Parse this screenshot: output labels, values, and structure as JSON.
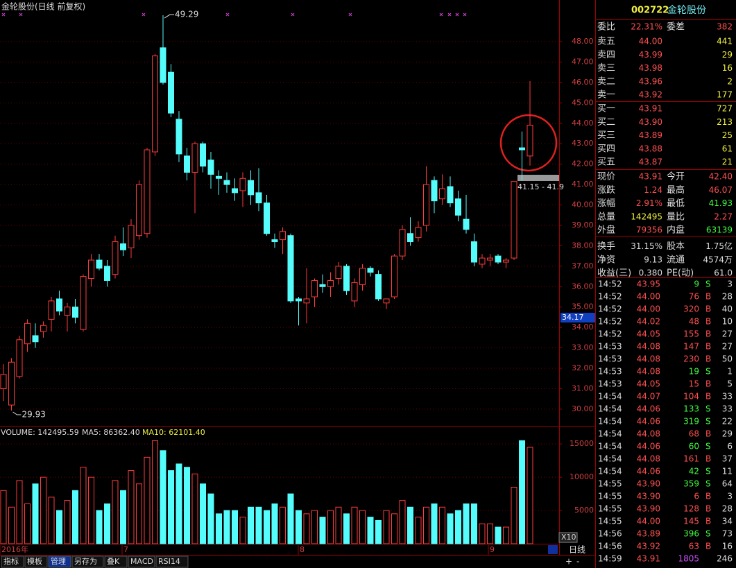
{
  "title": "金轮股份(日线 前复权)",
  "chart": {
    "type": "candlestick",
    "open": [
      31.0,
      30.2,
      31.6,
      33.2,
      33.6,
      33.8,
      34.4,
      35.4,
      34.6,
      35.0,
      33.9,
      36.4,
      37.3,
      37.0,
      36.6,
      38.1,
      37.9,
      38.5,
      38.6,
      42.6,
      47.7,
      46.5,
      44.2,
      42.4,
      41.6,
      43.0,
      42.2,
      41.4,
      41.2,
      40.8,
      40.7,
      41.2,
      40.6,
      40.1,
      38.3,
      38.3,
      38.5,
      35.4,
      35.2,
      35.5,
      36.1,
      36.0,
      36.4,
      37.0,
      35.3,
      36.1,
      36.9,
      36.6,
      35.2,
      35.5,
      37.5,
      38.6,
      38.4,
      39.0,
      41.2,
      40.3,
      40.9,
      40.3,
      39.3,
      38.2,
      37.1,
      37.3,
      37.5,
      37.2,
      37.4,
      42.8,
      42.4
    ],
    "high": [
      32.2,
      32.5,
      33.6,
      34.4,
      34.2,
      34.3,
      35.5,
      35.8,
      35.2,
      35.4,
      36.6,
      37.6,
      37.6,
      37.3,
      38.5,
      38.9,
      39.3,
      41.2,
      42.8,
      47.4,
      49.29,
      46.9,
      44.6,
      42.8,
      43.1,
      43.1,
      42.6,
      41.7,
      41.6,
      41.3,
      41.6,
      41.7,
      41.8,
      40.5,
      38.6,
      38.9,
      38.6,
      35.5,
      36.9,
      36.4,
      36.6,
      36.7,
      37.2,
      37.1,
      36.4,
      37.1,
      37.0,
      36.8,
      35.4,
      37.6,
      39.0,
      39.4,
      39.2,
      41.9,
      41.4,
      41.5,
      41.4,
      40.7,
      40.5,
      38.6,
      37.6,
      37.6,
      37.6,
      37.4,
      41.15,
      43.6,
      46.07
    ],
    "low": [
      30.4,
      29.93,
      31.5,
      32.8,
      33.0,
      33.5,
      33.8,
      34.6,
      33.8,
      34.2,
      33.8,
      36.0,
      36.8,
      36.0,
      36.4,
      37.5,
      37.4,
      38.3,
      38.4,
      42.4,
      45.9,
      44.3,
      42.1,
      41.2,
      39.6,
      41.6,
      40.8,
      40.5,
      40.6,
      40.2,
      39.9,
      40.0,
      39.7,
      38.5,
      37.9,
      37.6,
      35.2,
      34.1,
      34.2,
      35.0,
      35.7,
      35.5,
      36.1,
      35.6,
      35.0,
      35.8,
      36.5,
      35.3,
      34.9,
      35.4,
      37.3,
      38.0,
      38.2,
      38.7,
      39.6,
      40.0,
      39.9,
      39.2,
      38.6,
      37.0,
      36.9,
      37.0,
      37.1,
      36.9,
      37.3,
      41.2,
      41.93
    ],
    "close": [
      31.7,
      32.3,
      33.4,
      34.2,
      33.3,
      34.1,
      35.3,
      34.8,
      35.0,
      34.5,
      36.5,
      37.3,
      36.9,
      36.3,
      38.2,
      37.8,
      39.0,
      41.0,
      42.7,
      47.3,
      46.0,
      44.5,
      42.5,
      41.6,
      43.0,
      41.9,
      41.5,
      41.3,
      41.0,
      40.6,
      41.3,
      40.5,
      40.1,
      38.6,
      38.2,
      38.7,
      35.3,
      35.3,
      35.4,
      36.3,
      36.0,
      36.3,
      37.0,
      35.8,
      36.2,
      36.9,
      36.7,
      35.4,
      35.4,
      37.5,
      38.8,
      38.2,
      38.9,
      41.0,
      40.2,
      40.8,
      40.1,
      39.5,
      38.8,
      37.2,
      37.4,
      37.4,
      37.2,
      37.3,
      41.15,
      42.7,
      43.91
    ],
    "volume": [
      8000,
      5500,
      9500,
      6000,
      9000,
      10000,
      7000,
      5000,
      6500,
      8000,
      11500,
      10000,
      5000,
      6000,
      9500,
      8000,
      11000,
      9000,
      13000,
      15500,
      14000,
      11000,
      12000,
      11500,
      10500,
      9000,
      7500,
      4500,
      5000,
      5000,
      4000,
      5500,
      5500,
      5000,
      6000,
      5500,
      7500,
      5000,
      4500,
      5000,
      4000,
      5000,
      5500,
      4500,
      5500,
      5000,
      4000,
      3500,
      5000,
      4500,
      6500,
      5500,
      4000,
      5500,
      6000,
      5500,
      4500,
      5000,
      6000,
      6000,
      3000,
      3000,
      2500,
      2500,
      8500,
      15500,
      14500
    ],
    "up_color": "#ff3c3c",
    "down_color": "#54fcfc",
    "ylim": [
      29.25,
      49.36
    ],
    "yticks": [
      {
        "value": 30,
        "label": "30.00"
      },
      {
        "value": 31,
        "label": "31.00"
      },
      {
        "value": 32,
        "label": "32.00"
      },
      {
        "value": 33,
        "label": "33.00"
      },
      {
        "value": 34,
        "label": "34.00"
      },
      {
        "value": 35,
        "label": "35.00"
      },
      {
        "value": 36,
        "label": "36.00"
      },
      {
        "value": 37,
        "label": "37.00"
      },
      {
        "value": 38,
        "label": "38.00"
      },
      {
        "value": 39,
        "label": "39.00"
      },
      {
        "value": 40,
        "label": "40.00"
      },
      {
        "value": 41,
        "label": "41.00"
      },
      {
        "value": 42,
        "label": "42.00"
      },
      {
        "value": 43,
        "label": "43.00"
      },
      {
        "value": 44,
        "label": "44.00"
      },
      {
        "value": 45,
        "label": "45.00"
      },
      {
        "value": 46,
        "label": "46.00"
      },
      {
        "value": 47,
        "label": "47.00"
      },
      {
        "value": 48,
        "label": "48.00"
      }
    ],
    "volume_ylim": [
      0,
      17000
    ],
    "volume_yticks": [
      5000,
      10000,
      15000
    ],
    "high_label": "49.29",
    "low_label": "29.93",
    "range_label": "41.15 - 41.9",
    "price_label": "34.17",
    "volume_title": "VOLUME: 142495.59",
    "ma5_label": "MA5: 86362.40",
    "ma10_label": "MA10: 62101.40",
    "x_labels": [
      "2016年",
      "7",
      "8",
      "9"
    ],
    "scale_label": "X10",
    "period": "日线"
  },
  "tabs": [
    "指标",
    "模板",
    "管理",
    "另存为",
    "叠K",
    "MACD",
    "RSI14"
  ],
  "zoom": [
    "+",
    "-"
  ],
  "quote": {
    "code": "002722",
    "name": "金轮股份",
    "ratio": [
      "委比",
      "22.31%",
      "委差",
      "382"
    ],
    "asks": [
      [
        "卖五",
        "44.00",
        "441"
      ],
      [
        "卖四",
        "43.99",
        "29"
      ],
      [
        "卖三",
        "43.98",
        "16"
      ],
      [
        "卖二",
        "43.96",
        "2"
      ],
      [
        "卖一",
        "43.92",
        "177"
      ]
    ],
    "bids": [
      [
        "买一",
        "43.91",
        "727"
      ],
      [
        "买二",
        "43.90",
        "213"
      ],
      [
        "买三",
        "43.89",
        "25"
      ],
      [
        "买四",
        "43.88",
        "61"
      ],
      [
        "买五",
        "43.87",
        "21"
      ]
    ],
    "stats": [
      [
        "现价",
        "43.91",
        "今开",
        "42.40"
      ],
      [
        "涨跌",
        "1.24",
        "最高",
        "46.07"
      ],
      [
        "涨幅",
        "2.91%",
        "最低",
        "41.93"
      ],
      [
        "总量",
        "142495",
        "量比",
        "2.27"
      ],
      [
        "外盘",
        "79356",
        "内盘",
        "63139"
      ],
      [
        "换手",
        "31.15%",
        "股本",
        "1.75亿"
      ],
      [
        "净资",
        "9.13",
        "流通",
        "4574万"
      ],
      [
        "收益(三)",
        "0.380",
        "PE(动)",
        "61.0"
      ]
    ],
    "trades": [
      [
        "14:52",
        "43.95",
        "9",
        "S",
        "3"
      ],
      [
        "14:52",
        "44.00",
        "76",
        "B",
        "28"
      ],
      [
        "14:52",
        "44.00",
        "320",
        "B",
        "40"
      ],
      [
        "14:52",
        "44.02",
        "48",
        "B",
        "10"
      ],
      [
        "14:52",
        "44.05",
        "155",
        "B",
        "27"
      ],
      [
        "14:53",
        "44.08",
        "147",
        "B",
        "27"
      ],
      [
        "14:53",
        "44.08",
        "230",
        "B",
        "50"
      ],
      [
        "14:53",
        "44.08",
        "19",
        "S",
        "1"
      ],
      [
        "14:53",
        "44.05",
        "15",
        "B",
        "5"
      ],
      [
        "14:54",
        "44.07",
        "104",
        "B",
        "33"
      ],
      [
        "14:54",
        "44.06",
        "133",
        "S",
        "33"
      ],
      [
        "14:54",
        "44.06",
        "319",
        "S",
        "22"
      ],
      [
        "14:54",
        "44.08",
        "68",
        "B",
        "29"
      ],
      [
        "14:54",
        "44.06",
        "60",
        "S",
        "6"
      ],
      [
        "14:54",
        "44.08",
        "161",
        "B",
        "37"
      ],
      [
        "14:54",
        "44.06",
        "42",
        "S",
        "11"
      ],
      [
        "14:55",
        "43.90",
        "359",
        "S",
        "64"
      ],
      [
        "14:55",
        "43.90",
        "6",
        "B",
        "3"
      ],
      [
        "14:55",
        "43.90",
        "128",
        "B",
        "28"
      ],
      [
        "14:55",
        "44.00",
        "145",
        "B",
        "34"
      ],
      [
        "14:56",
        "43.89",
        "396",
        "S",
        "73"
      ],
      [
        "14:56",
        "43.92",
        "63",
        "B",
        "16"
      ],
      [
        "14:59",
        "43.91",
        "1805",
        null,
        "246"
      ]
    ]
  }
}
